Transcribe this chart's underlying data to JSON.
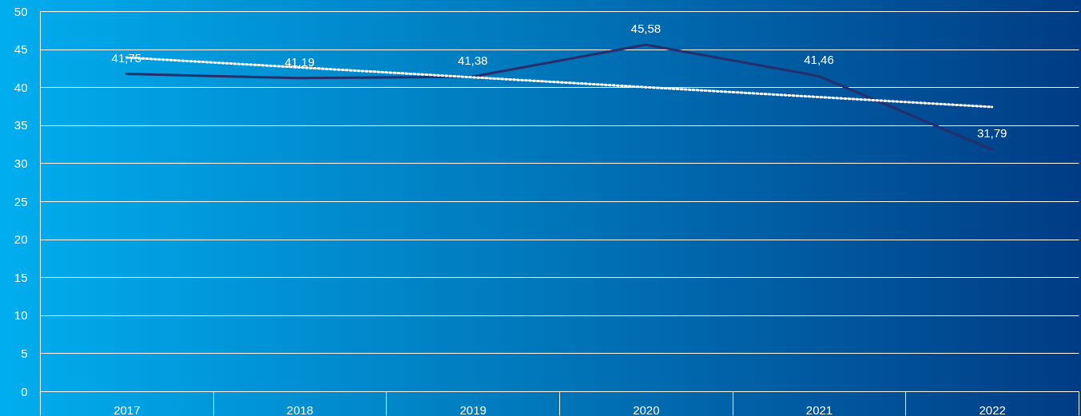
{
  "chart_data": {
    "type": "line",
    "categories": [
      "2017",
      "2018",
      "2019",
      "2020",
      "2021",
      "2022"
    ],
    "series": [
      {
        "color": "#262e6b",
        "values": [
          41.75,
          41.19,
          41.38,
          45.58,
          41.46,
          31.79
        ],
        "value_labels": [
          "41,75",
          "41,19",
          "41,38",
          "45,58",
          "41,46",
          "31,79"
        ]
      },
      {
        "color": "#ffffff",
        "line_style": "dotted",
        "values": [
          43.9,
          42.6,
          41.3,
          40.0,
          38.7,
          37.4
        ]
      }
    ],
    "ylim": [
      0,
      50
    ],
    "yticks": [
      0,
      5,
      10,
      15,
      20,
      25,
      30,
      35,
      40,
      45,
      50
    ],
    "grid": "y",
    "marker": "none"
  }
}
